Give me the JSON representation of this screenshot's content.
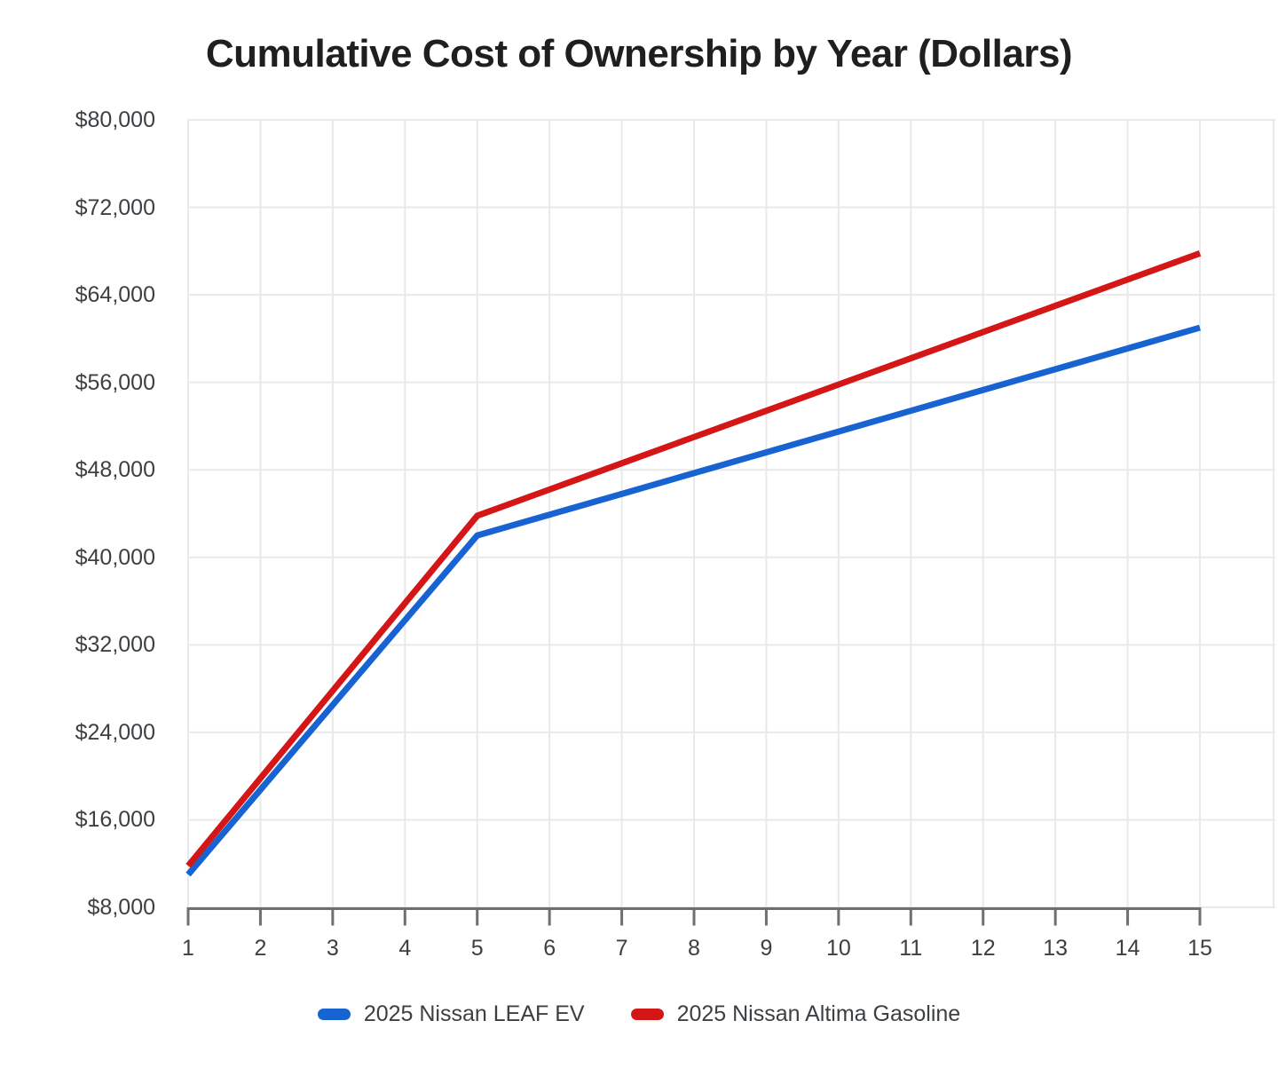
{
  "chart_data": {
    "type": "line",
    "title": "Cumulative Cost of Ownership by Year (Dollars)",
    "xlabel": "",
    "ylabel": "",
    "grid": true,
    "legend_position": "bottom",
    "x": [
      1,
      2,
      3,
      4,
      5,
      6,
      7,
      8,
      9,
      10,
      11,
      12,
      13,
      14,
      15
    ],
    "x_tick_labels": [
      "1",
      "2",
      "3",
      "4",
      "5",
      "6",
      "7",
      "8",
      "9",
      "10",
      "11",
      "12",
      "13",
      "14",
      "15"
    ],
    "ylim": [
      8000,
      80000
    ],
    "y_ticks": [
      8000,
      16000,
      24000,
      32000,
      40000,
      48000,
      56000,
      64000,
      72000,
      80000
    ],
    "y_tick_labels": [
      "$8,000",
      "$16,000",
      "$24,000",
      "$32,000",
      "$40,000",
      "$48,000",
      "$56,000",
      "$64,000",
      "$72,000",
      "$80,000"
    ],
    "series": [
      {
        "name": "2025 Nissan LEAF EV",
        "color": "#1763d2",
        "values": [
          11000,
          18750,
          26500,
          34250,
          42000,
          43900,
          45800,
          47700,
          49600,
          51500,
          53400,
          55300,
          57200,
          59100,
          61000
        ]
      },
      {
        "name": "2025 Nissan Altima Gasoline",
        "color": "#d51616",
        "values": [
          11800,
          19800,
          27800,
          35800,
          43800,
          46200,
          48600,
          51000,
          53400,
          55800,
          58200,
          60600,
          63000,
          65400,
          67800
        ]
      }
    ],
    "colors": {
      "grid": "#e9e9e9",
      "axis": "#6f6f6f",
      "tick_label": "#3d4043",
      "title": "#1f1f1f",
      "background": "#ffffff"
    }
  }
}
